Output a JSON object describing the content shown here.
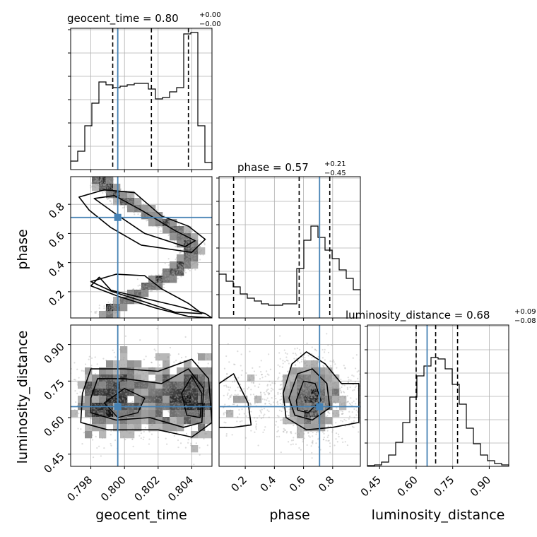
{
  "chart_data": {
    "type": "corner",
    "parameters": [
      {
        "id": "geocent_time",
        "label": "geocent_time",
        "range": [
          0.7968,
          0.8052
        ],
        "median": "0.80",
        "plus": "+0.00",
        "minus": "−0.00",
        "quantiles": [
          0.7993,
          0.8016,
          0.8038
        ],
        "truth": 0.7996,
        "ticks": [
          "0.798",
          "0.800",
          "0.802",
          "0.804"
        ],
        "tick_values": [
          0.798,
          0.8,
          0.802,
          0.804
        ]
      },
      {
        "id": "phase",
        "label": "phase",
        "range": [
          0.02,
          0.99
        ],
        "median": "0.57",
        "plus": "+0.21",
        "minus": "−0.45",
        "quantiles": [
          0.12,
          0.57,
          0.78
        ],
        "truth": 0.71,
        "ticks": [
          "0.2",
          "0.4",
          "0.6",
          "0.8"
        ],
        "tick_values": [
          0.2,
          0.4,
          0.6,
          0.8
        ]
      },
      {
        "id": "luminosity_distance",
        "label": "luminosity_distance",
        "range": [
          0.4,
          0.98
        ],
        "median": "0.68",
        "plus": "+0.09",
        "minus": "−0.08",
        "quantiles": [
          0.6,
          0.68,
          0.77
        ],
        "truth": 0.645,
        "ticks": [
          "0.45",
          "0.60",
          "0.75",
          "0.90"
        ],
        "tick_values": [
          0.45,
          0.6,
          0.75,
          0.9
        ]
      }
    ],
    "histograms": {
      "geocent_time": [
        0.06,
        0.13,
        0.31,
        0.47,
        0.62,
        0.6,
        0.58,
        0.59,
        0.6,
        0.61,
        0.61,
        0.57,
        0.5,
        0.51,
        0.55,
        0.58,
        0.96,
        0.97,
        0.31,
        0.05
      ],
      "phase": [
        0.31,
        0.26,
        0.22,
        0.17,
        0.14,
        0.12,
        0.1,
        0.09,
        0.09,
        0.1,
        0.1,
        0.35,
        0.55,
        0.65,
        0.57,
        0.48,
        0.42,
        0.34,
        0.28,
        0.2
      ],
      "luminosity_distance": [
        0.005,
        0.01,
        0.03,
        0.08,
        0.17,
        0.31,
        0.49,
        0.64,
        0.71,
        0.77,
        0.76,
        0.69,
        0.58,
        0.44,
        0.27,
        0.16,
        0.08,
        0.04,
        0.02,
        0.01
      ]
    },
    "grid": true,
    "truth_color": "#4682b4",
    "contour_color": "#000000"
  }
}
